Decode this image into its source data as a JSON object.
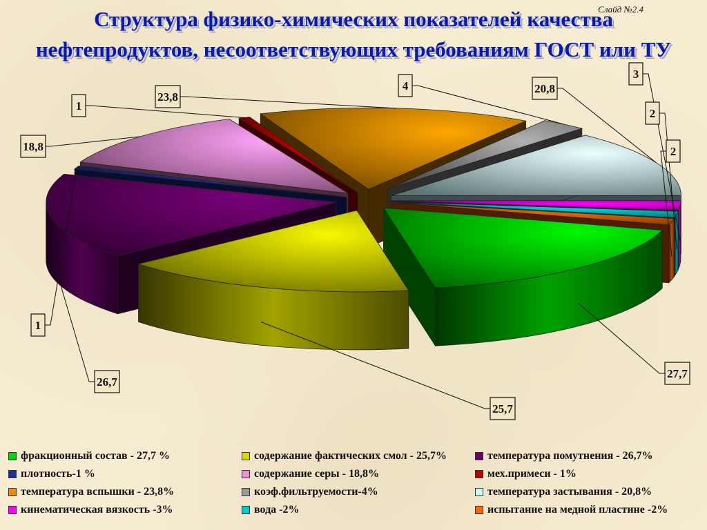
{
  "slide_number": "Слайд №2.4",
  "title_lines": [
    "Структура физико-химических показателей качества",
    "нефтепродуктов, несоответствующих требованиям ГОСТ или ТУ"
  ],
  "chart_data": {
    "type": "pie",
    "title": "Структура физико-химических показателей качества нефтепродуктов, несоответствующих требованиям ГОСТ или ТУ",
    "slices": [
      {
        "label": "фракционный состав - 27,7 %",
        "value": 27.7,
        "data_label": "27,7",
        "color": "#00d800"
      },
      {
        "label": "содержание фактических смол - 25,7%",
        "value": 25.7,
        "data_label": "25,7",
        "color": "#d8d800"
      },
      {
        "label": "температура помутнения - 26,7%",
        "value": 26.7,
        "data_label": "26,7",
        "color": "#6a006a"
      },
      {
        "label": "плотность-1 %",
        "value": 1,
        "data_label": "1",
        "color": "#1f2f9a"
      },
      {
        "label": "содержание серы - 18,8%",
        "value": 18.8,
        "data_label": "18,8",
        "color": "#f28ed8"
      },
      {
        "label": "мех.примеси - 1%",
        "value": 1,
        "data_label": "1",
        "color": "#c00000"
      },
      {
        "label": "температура вспышки - 23,8%",
        "value": 23.8,
        "data_label": "23,8",
        "color": "#e89000"
      },
      {
        "label": "коэф.фильтруемости-4%",
        "value": 4,
        "data_label": "4",
        "color": "#9a9a9a"
      },
      {
        "label": "температура застывания - 20,8%",
        "value": 20.8,
        "data_label": "20,8",
        "color": "#ccffff"
      },
      {
        "label": "кинематическая вязкость -3%",
        "value": 3,
        "data_label": "3",
        "color": "#ff00ff"
      },
      {
        "label": "вода -2%",
        "value": 2,
        "data_label": "2",
        "color": "#00cccc"
      },
      {
        "label": "испытание на медной пластине -2%",
        "value": 2,
        "data_label": "2",
        "color": "#ff6600"
      }
    ],
    "legend_order": [
      0,
      1,
      2,
      3,
      4,
      5,
      6,
      7,
      8,
      9,
      10,
      11
    ],
    "legend_placement": "bottom",
    "style": "3d-exploded"
  }
}
